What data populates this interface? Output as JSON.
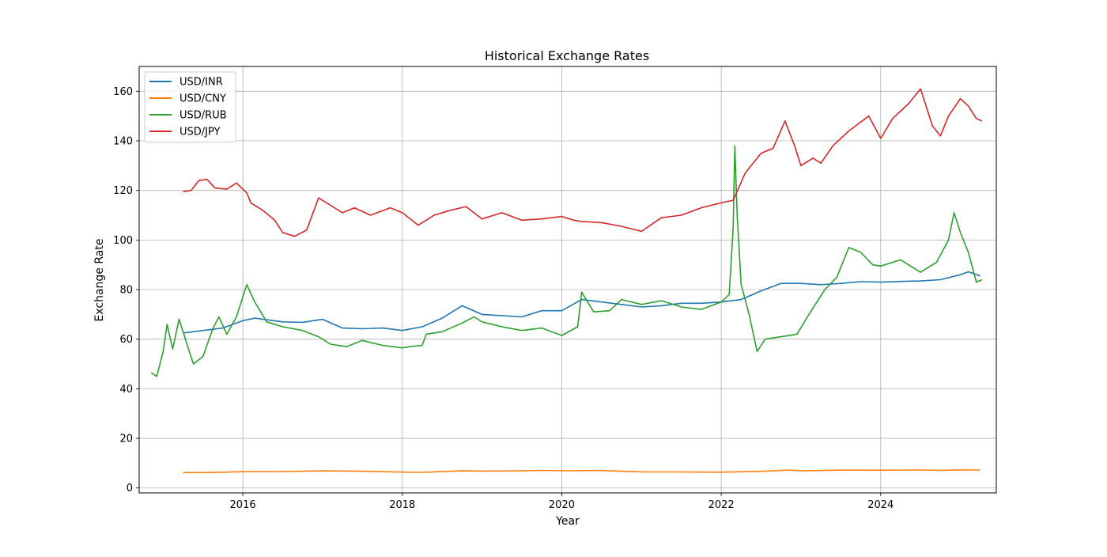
{
  "chart_data": {
    "type": "line",
    "title": "Historical Exchange Rates",
    "xlabel": "Year",
    "ylabel": "Exchange Rate",
    "xlim": [
      2014.7,
      2025.45
    ],
    "ylim": [
      -2,
      170
    ],
    "x_ticks": [
      2016,
      2018,
      2020,
      2022,
      2024
    ],
    "x_tick_labels": [
      "2016",
      "2018",
      "2020",
      "2022",
      "2024"
    ],
    "y_ticks": [
      0,
      20,
      40,
      60,
      80,
      100,
      120,
      140,
      160
    ],
    "y_tick_labels": [
      "0",
      "20",
      "40",
      "60",
      "80",
      "100",
      "120",
      "140",
      "160"
    ],
    "grid": true,
    "legend_position": "top-left",
    "series": [
      {
        "name": "USD/INR",
        "color": "#1f77b4",
        "points": [
          [
            2015.25,
            62.5
          ],
          [
            2015.5,
            63.5
          ],
          [
            2015.75,
            64.5
          ],
          [
            2016.0,
            67.5
          ],
          [
            2016.15,
            68.5
          ],
          [
            2016.5,
            67.0
          ],
          [
            2016.75,
            66.8
          ],
          [
            2017.0,
            68.0
          ],
          [
            2017.25,
            64.5
          ],
          [
            2017.5,
            64.2
          ],
          [
            2017.75,
            64.5
          ],
          [
            2018.0,
            63.5
          ],
          [
            2018.25,
            65.0
          ],
          [
            2018.5,
            68.5
          ],
          [
            2018.75,
            73.5
          ],
          [
            2019.0,
            70.0
          ],
          [
            2019.25,
            69.5
          ],
          [
            2019.5,
            69.0
          ],
          [
            2019.75,
            71.5
          ],
          [
            2020.0,
            71.5
          ],
          [
            2020.25,
            76.0
          ],
          [
            2020.5,
            75.0
          ],
          [
            2020.75,
            74.0
          ],
          [
            2021.0,
            73.0
          ],
          [
            2021.25,
            73.5
          ],
          [
            2021.5,
            74.5
          ],
          [
            2021.75,
            74.5
          ],
          [
            2022.0,
            75.0
          ],
          [
            2022.25,
            76.0
          ],
          [
            2022.5,
            79.5
          ],
          [
            2022.75,
            82.5
          ],
          [
            2023.0,
            82.5
          ],
          [
            2023.25,
            82.0
          ],
          [
            2023.5,
            82.5
          ],
          [
            2023.75,
            83.2
          ],
          [
            2024.0,
            83.0
          ],
          [
            2024.25,
            83.3
          ],
          [
            2024.5,
            83.5
          ],
          [
            2024.75,
            84.0
          ],
          [
            2025.0,
            86.0
          ],
          [
            2025.1,
            87.2
          ],
          [
            2025.25,
            85.5
          ]
        ]
      },
      {
        "name": "USD/CNY",
        "color": "#ff7f0e",
        "points": [
          [
            2015.25,
            6.2
          ],
          [
            2015.5,
            6.2
          ],
          [
            2015.75,
            6.35
          ],
          [
            2016.0,
            6.55
          ],
          [
            2016.5,
            6.6
          ],
          [
            2017.0,
            6.9
          ],
          [
            2017.5,
            6.75
          ],
          [
            2018.0,
            6.4
          ],
          [
            2018.25,
            6.3
          ],
          [
            2018.75,
            6.9
          ],
          [
            2019.0,
            6.8
          ],
          [
            2019.5,
            6.9
          ],
          [
            2019.75,
            7.1
          ],
          [
            2020.0,
            6.95
          ],
          [
            2020.5,
            7.05
          ],
          [
            2021.0,
            6.5
          ],
          [
            2021.5,
            6.45
          ],
          [
            2022.0,
            6.35
          ],
          [
            2022.5,
            6.7
          ],
          [
            2022.85,
            7.2
          ],
          [
            2023.0,
            6.9
          ],
          [
            2023.5,
            7.2
          ],
          [
            2024.0,
            7.15
          ],
          [
            2024.5,
            7.25
          ],
          [
            2024.75,
            7.05
          ],
          [
            2025.0,
            7.3
          ],
          [
            2025.25,
            7.25
          ]
        ]
      },
      {
        "name": "USD/RUB",
        "color": "#2ca02c",
        "points": [
          [
            2014.85,
            46.5
          ],
          [
            2014.92,
            45.0
          ],
          [
            2015.0,
            55.0
          ],
          [
            2015.05,
            66.0
          ],
          [
            2015.12,
            56.0
          ],
          [
            2015.2,
            68.0
          ],
          [
            2015.3,
            58.0
          ],
          [
            2015.38,
            50.0
          ],
          [
            2015.5,
            53.0
          ],
          [
            2015.62,
            64.0
          ],
          [
            2015.7,
            69.0
          ],
          [
            2015.8,
            62.0
          ],
          [
            2015.92,
            69.0
          ],
          [
            2016.05,
            82.0
          ],
          [
            2016.15,
            75.0
          ],
          [
            2016.3,
            67.0
          ],
          [
            2016.5,
            65.0
          ],
          [
            2016.75,
            63.5
          ],
          [
            2016.95,
            61.0
          ],
          [
            2017.1,
            58.0
          ],
          [
            2017.3,
            57.0
          ],
          [
            2017.5,
            59.5
          ],
          [
            2017.75,
            57.5
          ],
          [
            2018.0,
            56.5
          ],
          [
            2018.1,
            57.0
          ],
          [
            2018.25,
            57.5
          ],
          [
            2018.3,
            62.0
          ],
          [
            2018.5,
            63.0
          ],
          [
            2018.75,
            66.5
          ],
          [
            2018.9,
            69.0
          ],
          [
            2019.0,
            67.0
          ],
          [
            2019.25,
            65.0
          ],
          [
            2019.5,
            63.5
          ],
          [
            2019.75,
            64.5
          ],
          [
            2020.0,
            61.5
          ],
          [
            2020.2,
            65.0
          ],
          [
            2020.25,
            79.0
          ],
          [
            2020.4,
            71.0
          ],
          [
            2020.6,
            71.5
          ],
          [
            2020.75,
            76.0
          ],
          [
            2021.0,
            74.0
          ],
          [
            2021.25,
            75.5
          ],
          [
            2021.5,
            73.0
          ],
          [
            2021.75,
            72.0
          ],
          [
            2022.0,
            75.0
          ],
          [
            2022.1,
            78.0
          ],
          [
            2022.15,
            105.0
          ],
          [
            2022.17,
            138.0
          ],
          [
            2022.2,
            110.0
          ],
          [
            2022.25,
            82.0
          ],
          [
            2022.35,
            70.0
          ],
          [
            2022.45,
            55.0
          ],
          [
            2022.55,
            60.0
          ],
          [
            2022.75,
            61.0
          ],
          [
            2022.95,
            62.0
          ],
          [
            2023.1,
            70.0
          ],
          [
            2023.3,
            80.0
          ],
          [
            2023.45,
            85.0
          ],
          [
            2023.6,
            97.0
          ],
          [
            2023.75,
            95.0
          ],
          [
            2023.9,
            90.0
          ],
          [
            2024.0,
            89.5
          ],
          [
            2024.25,
            92.0
          ],
          [
            2024.5,
            87.0
          ],
          [
            2024.7,
            91.0
          ],
          [
            2024.85,
            100.0
          ],
          [
            2024.92,
            111.0
          ],
          [
            2025.0,
            103.0
          ],
          [
            2025.1,
            95.0
          ],
          [
            2025.2,
            83.0
          ],
          [
            2025.27,
            84.0
          ]
        ]
      },
      {
        "name": "USD/JPY",
        "color": "#d62728",
        "points": [
          [
            2015.25,
            119.5
          ],
          [
            2015.35,
            120.0
          ],
          [
            2015.45,
            124.0
          ],
          [
            2015.55,
            124.5
          ],
          [
            2015.65,
            121.0
          ],
          [
            2015.8,
            120.5
          ],
          [
            2015.92,
            123.0
          ],
          [
            2016.05,
            119.0
          ],
          [
            2016.1,
            115.0
          ],
          [
            2016.25,
            112.0
          ],
          [
            2016.4,
            108.0
          ],
          [
            2016.5,
            103.0
          ],
          [
            2016.65,
            101.5
          ],
          [
            2016.8,
            104.0
          ],
          [
            2016.95,
            117.0
          ],
          [
            2017.1,
            114.0
          ],
          [
            2017.25,
            111.0
          ],
          [
            2017.4,
            113.0
          ],
          [
            2017.6,
            110.0
          ],
          [
            2017.85,
            113.0
          ],
          [
            2018.0,
            111.0
          ],
          [
            2018.2,
            106.0
          ],
          [
            2018.4,
            110.0
          ],
          [
            2018.6,
            112.0
          ],
          [
            2018.8,
            113.5
          ],
          [
            2019.0,
            108.5
          ],
          [
            2019.25,
            111.0
          ],
          [
            2019.5,
            108.0
          ],
          [
            2019.75,
            108.5
          ],
          [
            2020.0,
            109.5
          ],
          [
            2020.15,
            108.0
          ],
          [
            2020.25,
            107.5
          ],
          [
            2020.5,
            107.0
          ],
          [
            2020.75,
            105.5
          ],
          [
            2021.0,
            103.5
          ],
          [
            2021.25,
            109.0
          ],
          [
            2021.5,
            110.0
          ],
          [
            2021.75,
            113.0
          ],
          [
            2022.0,
            115.0
          ],
          [
            2022.15,
            116.0
          ],
          [
            2022.3,
            127.0
          ],
          [
            2022.5,
            135.0
          ],
          [
            2022.65,
            137.0
          ],
          [
            2022.8,
            148.0
          ],
          [
            2022.92,
            138.0
          ],
          [
            2023.0,
            130.0
          ],
          [
            2023.15,
            133.0
          ],
          [
            2023.25,
            131.0
          ],
          [
            2023.4,
            138.0
          ],
          [
            2023.6,
            144.0
          ],
          [
            2023.85,
            150.0
          ],
          [
            2024.0,
            141.0
          ],
          [
            2024.15,
            149.0
          ],
          [
            2024.35,
            155.0
          ],
          [
            2024.5,
            161.0
          ],
          [
            2024.65,
            146.0
          ],
          [
            2024.75,
            142.0
          ],
          [
            2024.85,
            150.0
          ],
          [
            2025.0,
            157.0
          ],
          [
            2025.1,
            154.0
          ],
          [
            2025.2,
            149.0
          ],
          [
            2025.27,
            148.0
          ]
        ]
      }
    ]
  }
}
